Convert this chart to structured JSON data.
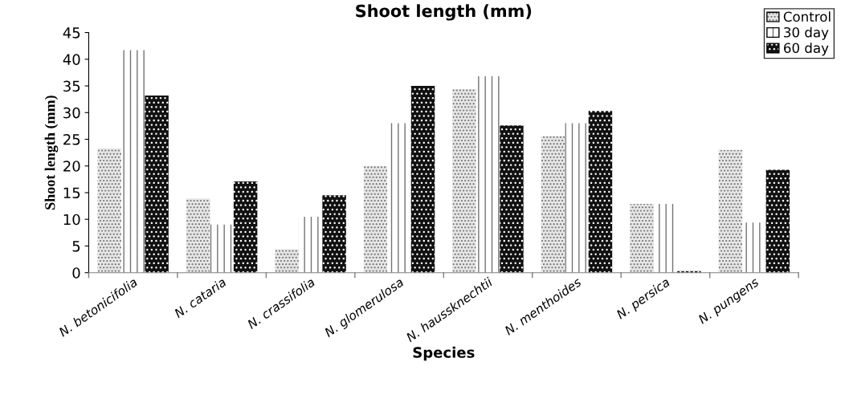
{
  "chart_data": {
    "type": "bar",
    "title": "Shoot length (mm)",
    "xlabel": "Species",
    "ylabel": "Shoot length (mm)",
    "categories": [
      "N. betonicifolia",
      "N. cataria",
      "N. crassifolia",
      "N. glomerulosa",
      "N. haussknechtii",
      "N. menthoides",
      "N. persica",
      "N. pungens"
    ],
    "series": [
      {
        "name": "Control",
        "color": "#e6e6e6",
        "values": [
          23.3,
          13.9,
          4.4,
          20.0,
          34.4,
          25.6,
          12.9,
          23.0
        ]
      },
      {
        "name": "30 day",
        "color": "#ffffff",
        "values": [
          41.7,
          9.0,
          10.5,
          28.0,
          36.8,
          28.0,
          12.9,
          9.4
        ]
      },
      {
        "name": "60 day",
        "color": "#111111",
        "values": [
          33.2,
          17.1,
          14.5,
          35.0,
          27.6,
          30.3,
          0.3,
          19.3
        ]
      }
    ],
    "ylim": [
      0,
      45
    ],
    "yticks": [
      0,
      5,
      10,
      15,
      20,
      25,
      30,
      35,
      40,
      45
    ],
    "grid": false,
    "legend": "top right"
  }
}
